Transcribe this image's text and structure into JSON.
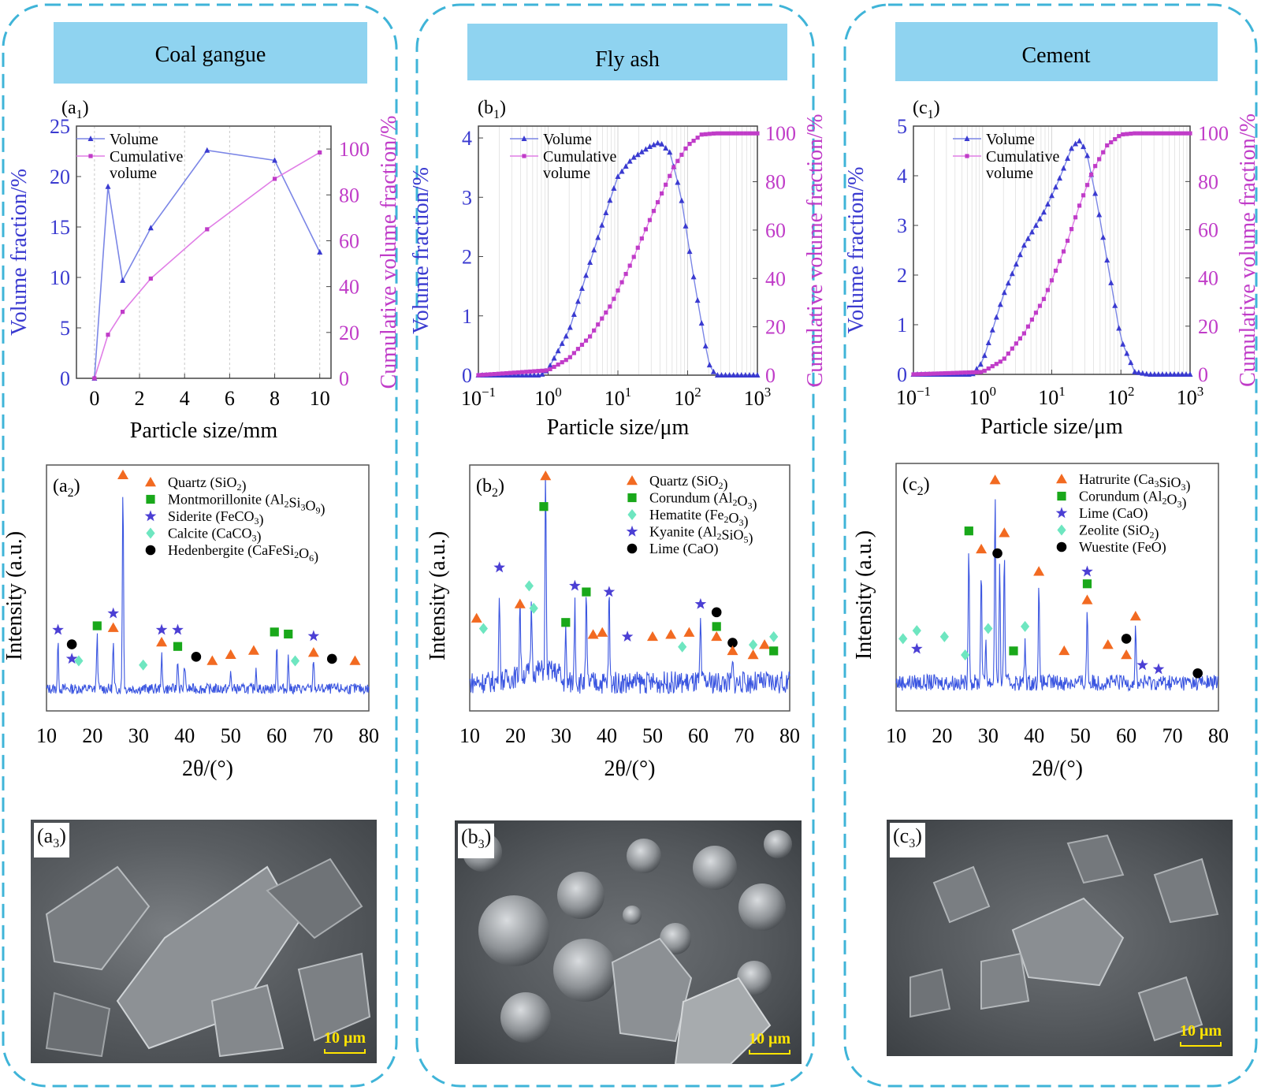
{
  "colors": {
    "blue": "#3a3ad0",
    "magenta": "#c03cc8",
    "header": "#8fd3f0",
    "dash": "#3fb4d8",
    "tri": "#f26a21",
    "sq": "#19a81a",
    "diamond": "#6ee6c0",
    "star": "#4b3fd4",
    "dot": "#000000",
    "xrd": "#3a55e0"
  },
  "columns": [
    {
      "title": "Coal gangue",
      "psd_label_main": "a",
      "psd_label_sub": "1",
      "xrd_label_main": "a",
      "xrd_label_sub": "2",
      "sem_label_main": "a",
      "sem_label_sub": "3"
    },
    {
      "title": "Fly ash",
      "psd_label_main": "b",
      "psd_label_sub": "1",
      "xrd_label_main": "b",
      "xrd_label_sub": "2",
      "sem_label_main": "b",
      "sem_label_sub": "3"
    },
    {
      "title": "Cement",
      "psd_label_main": "c",
      "psd_label_sub": "1",
      "xrd_label_main": "c",
      "xrd_label_sub": "2",
      "sem_label_main": "c",
      "sem_label_sub": "3"
    }
  ],
  "common": {
    "ylabel_left": "Volume fraction/%",
    "ylabel_right": "Cumulative volume fraction/%",
    "legend_volume": "Volume",
    "legend_cum_1": "Cumulative",
    "legend_cum_2": "volume",
    "xlabel_mm": "Particle size/mm",
    "xlabel_um": "Particle size/μm",
    "xrd_ylabel": "Intensity (a.u.)",
    "xrd_xlabel": "2θ/(°)",
    "scale_bar": "10 μm"
  },
  "chart_data": [
    {
      "id": "a1",
      "type": "line",
      "x": [
        0,
        0.6,
        1.25,
        2.5,
        5,
        8,
        10
      ],
      "series": [
        {
          "name": "Volume",
          "axis": "left",
          "values": [
            0,
            19,
            9.7,
            14.9,
            22.6,
            21.6,
            12.5
          ]
        },
        {
          "name": "Cumulative volume",
          "axis": "right",
          "values": [
            0,
            19,
            29,
            43.5,
            65,
            87,
            98.5
          ]
        }
      ],
      "xlim": [
        -0.8,
        10.5
      ],
      "xticks": [
        0,
        2,
        4,
        6,
        8,
        10
      ],
      "ylim_left": [
        0,
        25
      ],
      "yticks_left": [
        0,
        5,
        10,
        15,
        20,
        25
      ],
      "ylim_right": [
        0,
        110
      ],
      "yticks_right": [
        0,
        20,
        40,
        60,
        80,
        100
      ],
      "xlabel": "Particle size/mm"
    },
    {
      "id": "b1",
      "type": "line",
      "xscale": "log",
      "xlim": [
        0.1,
        1000
      ],
      "xticks": [
        "10−1",
        "100",
        "101",
        "102",
        "103"
      ],
      "ylim_left": [
        0,
        4.2
      ],
      "yticks_left": [
        0,
        1,
        2,
        3,
        4
      ],
      "ylim_right": [
        0,
        103
      ],
      "yticks_right": [
        0,
        20,
        40,
        60,
        80,
        100
      ],
      "volume_curve": {
        "log10_x": [
          -1,
          -0.1,
          0,
          0.3,
          0.6,
          0.9,
          1.0,
          1.2,
          1.45,
          1.6,
          1.75,
          1.9,
          2.1,
          2.3,
          2.4,
          3
        ],
        "values": [
          0,
          0,
          0.1,
          0.75,
          1.9,
          3.0,
          3.35,
          3.65,
          3.85,
          3.93,
          3.75,
          3.05,
          1.55,
          0.2,
          0,
          0
        ]
      },
      "cumulative_curve": {
        "log10_x": [
          -1,
          0,
          0.3,
          0.6,
          0.9,
          1.2,
          1.5,
          1.8,
          2.0,
          2.2,
          2.4,
          3
        ],
        "values": [
          0,
          2,
          7,
          16,
          29,
          47,
          67,
          86,
          95,
          99.5,
          100,
          100
        ]
      },
      "xlabel": "Particle size/μm"
    },
    {
      "id": "c1",
      "type": "line",
      "xscale": "log",
      "xlim": [
        0.1,
        1000
      ],
      "xticks": [
        "10−1",
        "100",
        "101",
        "102",
        "103"
      ],
      "ylim_left": [
        0,
        5
      ],
      "yticks_left": [
        0,
        1,
        2,
        3,
        4,
        5
      ],
      "ylim_right": [
        0,
        103
      ],
      "yticks_right": [
        0,
        20,
        40,
        60,
        80,
        100
      ],
      "volume_curve": {
        "log10_x": [
          -1,
          -0.15,
          0,
          0.3,
          0.6,
          0.9,
          1.1,
          1.3,
          1.4,
          1.5,
          1.65,
          1.8,
          2.0,
          2.2,
          2.4,
          3
        ],
        "values": [
          0,
          0,
          0.25,
          1.6,
          2.6,
          3.3,
          3.9,
          4.6,
          4.7,
          4.5,
          3.5,
          2.3,
          0.7,
          0.05,
          0,
          0
        ]
      },
      "cumulative_curve": {
        "log10_x": [
          -1,
          0,
          0.3,
          0.6,
          0.9,
          1.2,
          1.4,
          1.6,
          1.8,
          2.0,
          2.2,
          3
        ],
        "values": [
          0,
          1,
          6,
          17,
          32,
          53,
          70,
          85,
          95,
          99.5,
          100,
          100
        ]
      },
      "xlabel": "Particle size/μm"
    },
    {
      "id": "a2",
      "type": "line",
      "xlim": [
        10,
        80
      ],
      "xticks": [
        10,
        20,
        30,
        40,
        50,
        60,
        70,
        80
      ],
      "xlabel": "2θ/(°)",
      "ylabel": "Intensity (a.u.)",
      "peaks": [
        [
          12.5,
          0.22
        ],
        [
          21,
          0.27
        ],
        [
          24.5,
          0.22
        ],
        [
          26.6,
          1.0
        ],
        [
          35,
          0.16
        ],
        [
          38.5,
          0.15
        ],
        [
          40,
          0.12
        ],
        [
          50,
          0.08
        ],
        [
          55.5,
          0.1
        ],
        [
          60,
          0.22
        ],
        [
          62.5,
          0.15
        ],
        [
          68,
          0.15
        ]
      ],
      "legend": [
        {
          "shape": "tri",
          "name": "Quartz",
          "formula": "(SiO2)"
        },
        {
          "shape": "sq",
          "name": "Montmorillonite",
          "formula": "(Al2Si3O9)"
        },
        {
          "shape": "star",
          "name": "Siderite",
          "formula": "(FeCO3)"
        },
        {
          "shape": "diamond",
          "name": "Calcite",
          "formula": "(CaCO3)"
        },
        {
          "shape": "dot",
          "name": "Hedenbergite",
          "formula": "(CaFeSi2O6)"
        }
      ],
      "markers": [
        [
          "star",
          12.5,
          0.27
        ],
        [
          "dot",
          15.5,
          0.2
        ],
        [
          "star",
          15.5,
          0.13
        ],
        [
          "diamond",
          17,
          0.12
        ],
        [
          "sq",
          21,
          0.29
        ],
        [
          "star",
          24.5,
          0.35
        ],
        [
          "tri",
          24.5,
          0.28
        ],
        [
          "tri",
          26.6,
          1.02
        ],
        [
          "diamond",
          31,
          0.1
        ],
        [
          "star",
          35,
          0.27
        ],
        [
          "tri",
          35,
          0.21
        ],
        [
          "star",
          38.5,
          0.27
        ],
        [
          "sq",
          38.5,
          0.19
        ],
        [
          "dot",
          42.5,
          0.14
        ],
        [
          "tri",
          46,
          0.12
        ],
        [
          "tri",
          50,
          0.15
        ],
        [
          "tri",
          55,
          0.17
        ],
        [
          "sq",
          59.5,
          0.26
        ],
        [
          "sq",
          62.5,
          0.25
        ],
        [
          "diamond",
          64,
          0.12
        ],
        [
          "star",
          68,
          0.24
        ],
        [
          "tri",
          68,
          0.16
        ],
        [
          "dot",
          72,
          0.13
        ],
        [
          "tri",
          77,
          0.12
        ]
      ]
    },
    {
      "id": "b2",
      "type": "line",
      "xlim": [
        10,
        80
      ],
      "xticks": [
        10,
        20,
        30,
        40,
        50,
        60,
        70,
        80
      ],
      "xlabel": "2θ/(°)",
      "ylabel": "Intensity (a.u.)",
      "peaks": [
        [
          16.5,
          0.48
        ],
        [
          21,
          0.38
        ],
        [
          23.5,
          0.35
        ],
        [
          26.6,
          0.98
        ],
        [
          31,
          0.25
        ],
        [
          33,
          0.42
        ],
        [
          35.5,
          0.42
        ],
        [
          40.5,
          0.44
        ],
        [
          60.5,
          0.3
        ],
        [
          67.5,
          0.1
        ]
      ],
      "legend": [
        {
          "shape": "tri",
          "name": "Quartz",
          "formula": "(SiO2)"
        },
        {
          "shape": "sq",
          "name": "Corundum",
          "formula": "(Al2O3)"
        },
        {
          "shape": "diamond",
          "name": "Hematite",
          "formula": "(Fe2O3)"
        },
        {
          "shape": "star",
          "name": "Kyanite",
          "formula": "(Al2SiO5)"
        },
        {
          "shape": "dot",
          "name": "Lime",
          "formula": "(CaO)"
        }
      ],
      "markers": [
        [
          "tri",
          11.5,
          0.3
        ],
        [
          "diamond",
          13,
          0.25
        ],
        [
          "star",
          16.5,
          0.55
        ],
        [
          "tri",
          21,
          0.37
        ],
        [
          "diamond",
          23,
          0.46
        ],
        [
          "diamond",
          24,
          0.35
        ],
        [
          "sq",
          26.2,
          0.85
        ],
        [
          "tri",
          26.6,
          1.0
        ],
        [
          "sq",
          31,
          0.28
        ],
        [
          "star",
          33,
          0.46
        ],
        [
          "sq",
          35.5,
          0.43
        ],
        [
          "tri",
          37,
          0.22
        ],
        [
          "tri",
          39,
          0.23
        ],
        [
          "star",
          40.5,
          0.43
        ],
        [
          "star",
          44.5,
          0.21
        ],
        [
          "tri",
          50,
          0.21
        ],
        [
          "tri",
          54,
          0.22
        ],
        [
          "diamond",
          56.5,
          0.16
        ],
        [
          "tri",
          58,
          0.23
        ],
        [
          "star",
          60.5,
          0.37
        ],
        [
          "dot",
          64,
          0.33
        ],
        [
          "sq",
          64,
          0.26
        ],
        [
          "tri",
          64,
          0.21
        ],
        [
          "dot",
          67.5,
          0.18
        ],
        [
          "tri",
          67.5,
          0.14
        ],
        [
          "diamond",
          72,
          0.17
        ],
        [
          "tri",
          72,
          0.12
        ],
        [
          "tri",
          74.5,
          0.17
        ],
        [
          "diamond",
          76.5,
          0.21
        ],
        [
          "sq",
          76.5,
          0.14
        ]
      ]
    },
    {
      "id": "c2",
      "type": "line",
      "xlim": [
        10,
        80
      ],
      "xticks": [
        10,
        20,
        30,
        40,
        50,
        60,
        70,
        80
      ],
      "xlabel": "2θ/(°)",
      "ylabel": "Intensity (a.u.)",
      "peaks": [
        [
          25.8,
          0.7
        ],
        [
          28.5,
          0.58
        ],
        [
          29.5,
          0.22
        ],
        [
          31.5,
          0.95
        ],
        [
          32.5,
          0.55
        ],
        [
          33.5,
          0.65
        ],
        [
          38,
          0.2
        ],
        [
          41,
          0.48
        ],
        [
          51.5,
          0.38
        ],
        [
          62,
          0.28
        ]
      ],
      "legend": [
        {
          "shape": "tri",
          "name": "Hatrurite",
          "formula": "(Ca3SiO3)"
        },
        {
          "shape": "sq",
          "name": "Corundum",
          "formula": "(Al2O3)"
        },
        {
          "shape": "star",
          "name": "Lime",
          "formula": "(CaO)"
        },
        {
          "shape": "diamond",
          "name": "Zeolite",
          "formula": "(SiO2)"
        },
        {
          "shape": "dot",
          "name": "Wuestite",
          "formula": "(FeO)"
        }
      ],
      "markers": [
        [
          "diamond",
          11.5,
          0.2
        ],
        [
          "diamond",
          14.5,
          0.24
        ],
        [
          "star",
          14.5,
          0.15
        ],
        [
          "diamond",
          20.5,
          0.21
        ],
        [
          "diamond",
          25,
          0.12
        ],
        [
          "sq",
          25.8,
          0.73
        ],
        [
          "tri",
          28.5,
          0.64
        ],
        [
          "diamond",
          30,
          0.25
        ],
        [
          "tri",
          31.5,
          0.98
        ],
        [
          "dot",
          32,
          0.62
        ],
        [
          "tri",
          33.5,
          0.72
        ],
        [
          "sq",
          35.5,
          0.14
        ],
        [
          "diamond",
          38,
          0.26
        ],
        [
          "tri",
          41,
          0.53
        ],
        [
          "tri",
          46.5,
          0.14
        ],
        [
          "star",
          51.5,
          0.53
        ],
        [
          "sq",
          51.5,
          0.47
        ],
        [
          "tri",
          51.5,
          0.39
        ],
        [
          "tri",
          56,
          0.17
        ],
        [
          "dot",
          60,
          0.2
        ],
        [
          "tri",
          60,
          0.12
        ],
        [
          "tri",
          62,
          0.31
        ],
        [
          "star",
          63.5,
          0.07
        ],
        [
          "star",
          67,
          0.05
        ],
        [
          "dot",
          75.5,
          0.03
        ]
      ]
    }
  ]
}
